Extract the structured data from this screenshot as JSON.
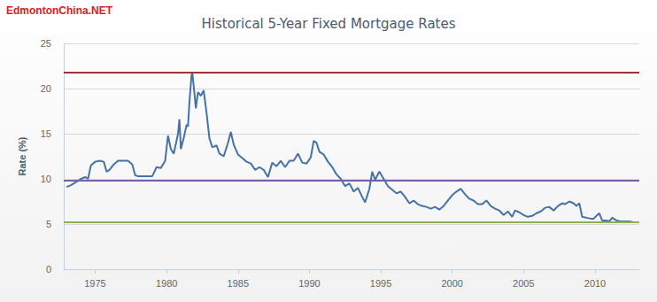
{
  "chart_data": {
    "type": "line",
    "title": "Historical 5-Year Fixed Mortgage Rates",
    "watermark": "EdmontonChina.NET",
    "y_label": "Rate (%)",
    "xlim": [
      1972.8,
      2013.1
    ],
    "xticks": [
      1975,
      1980,
      1985,
      1990,
      1995,
      2000,
      2005,
      2010
    ],
    "ylim": [
      0,
      25
    ],
    "yticks": [
      0,
      5,
      10,
      15,
      20,
      25
    ],
    "grid": true,
    "x": [
      1973.0,
      1973.3,
      1973.6,
      1974.0,
      1974.3,
      1974.5,
      1974.7,
      1975.0,
      1975.3,
      1975.6,
      1975.8,
      1976.0,
      1976.3,
      1976.6,
      1977.0,
      1977.3,
      1977.6,
      1977.8,
      1978.0,
      1978.5,
      1979.0,
      1979.3,
      1979.6,
      1979.9,
      1980.1,
      1980.3,
      1980.5,
      1980.6,
      1980.8,
      1980.9,
      1981.0,
      1981.2,
      1981.4,
      1981.5,
      1981.6,
      1981.75,
      1981.8,
      1981.95,
      1982.05,
      1982.2,
      1982.4,
      1982.6,
      1982.8,
      1983.0,
      1983.2,
      1983.5,
      1983.7,
      1984.0,
      1984.3,
      1984.5,
      1984.7,
      1985.0,
      1985.3,
      1985.6,
      1985.9,
      1986.2,
      1986.5,
      1986.8,
      1987.1,
      1987.4,
      1987.7,
      1988.0,
      1988.3,
      1988.6,
      1988.9,
      1989.2,
      1989.5,
      1989.8,
      1990.1,
      1990.3,
      1990.5,
      1990.7,
      1991.0,
      1991.3,
      1991.6,
      1991.9,
      1992.2,
      1992.5,
      1992.8,
      1993.1,
      1993.4,
      1993.7,
      1993.9,
      1994.2,
      1994.4,
      1994.6,
      1994.9,
      1995.2,
      1995.5,
      1995.8,
      1996.1,
      1996.4,
      1996.7,
      1997.0,
      1997.3,
      1997.6,
      1997.9,
      1998.2,
      1998.5,
      1998.8,
      1999.1,
      1999.4,
      1999.7,
      2000.0,
      2000.3,
      2000.6,
      2000.9,
      2001.2,
      2001.5,
      2001.8,
      2002.1,
      2002.4,
      2002.7,
      2003.0,
      2003.3,
      2003.6,
      2003.9,
      2004.2,
      2004.4,
      2004.7,
      2005.0,
      2005.3,
      2005.6,
      2005.9,
      2006.2,
      2006.5,
      2006.8,
      2007.1,
      2007.4,
      2007.7,
      2007.9,
      2008.2,
      2008.5,
      2008.7,
      2008.9,
      2009.1,
      2009.4,
      2009.7,
      2009.9,
      2010.1,
      2010.3,
      2010.5,
      2010.8,
      2011.0,
      2011.2,
      2011.5,
      2011.8,
      2012.1,
      2012.4,
      2012.7
    ],
    "series": [
      {
        "color": "#4572a7",
        "values": [
          9.1,
          9.3,
          9.6,
          10.0,
          10.2,
          10.0,
          11.5,
          11.9,
          12.0,
          11.9,
          10.8,
          11.0,
          11.6,
          12.0,
          12.0,
          12.0,
          11.6,
          10.4,
          10.3,
          10.3,
          10.3,
          11.3,
          11.2,
          12.0,
          14.8,
          13.3,
          12.8,
          13.5,
          15.0,
          16.6,
          13.3,
          14.5,
          16.0,
          15.8,
          18.5,
          21.5,
          21.75,
          19.5,
          17.8,
          19.6,
          19.2,
          19.8,
          17.3,
          14.5,
          13.5,
          13.7,
          12.8,
          12.5,
          14.0,
          15.2,
          13.8,
          12.7,
          12.3,
          11.9,
          11.7,
          11.0,
          11.3,
          11.0,
          10.2,
          11.8,
          11.4,
          12.0,
          11.3,
          12.0,
          12.0,
          12.8,
          11.8,
          11.7,
          12.4,
          14.2,
          14.0,
          13.0,
          12.7,
          11.9,
          11.3,
          10.5,
          10.0,
          9.2,
          9.5,
          8.6,
          9.0,
          8.0,
          7.4,
          8.9,
          10.8,
          9.9,
          10.8,
          10.0,
          9.2,
          8.8,
          8.4,
          8.6,
          8.0,
          7.3,
          7.6,
          7.2,
          7.0,
          6.9,
          6.7,
          6.9,
          6.6,
          7.0,
          7.6,
          8.2,
          8.6,
          8.9,
          8.3,
          7.8,
          7.6,
          7.2,
          7.2,
          7.6,
          7.0,
          6.7,
          6.5,
          6.0,
          6.4,
          5.8,
          6.5,
          6.3,
          6.0,
          5.8,
          5.9,
          6.2,
          6.4,
          6.8,
          6.9,
          6.5,
          7.0,
          7.3,
          7.2,
          7.5,
          7.3,
          7.0,
          7.3,
          5.8,
          5.7,
          5.6,
          5.6,
          5.9,
          6.2,
          5.4,
          5.4,
          5.3,
          5.7,
          5.4,
          5.3,
          5.3,
          5.3,
          5.2
        ]
      }
    ],
    "hlines": [
      {
        "value": 21.75,
        "color": "#a83232"
      },
      {
        "value": 9.8,
        "color": "#7b5ea7"
      },
      {
        "value": 5.25,
        "color": "#8fae4f"
      }
    ]
  }
}
